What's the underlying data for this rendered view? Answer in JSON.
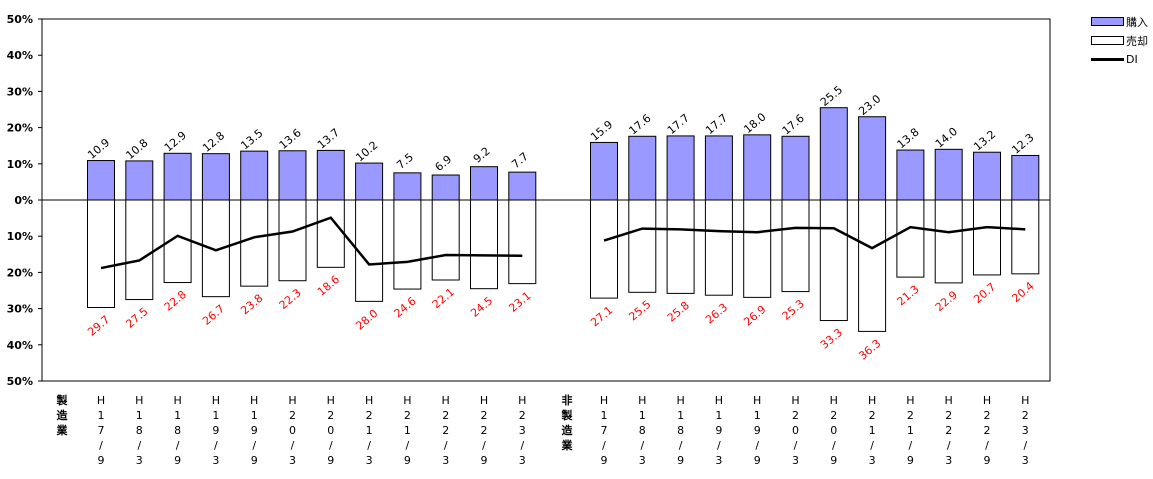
{
  "chart_data": {
    "type": "bar",
    "groups": [
      {
        "label": "製造業",
        "categories": [
          "H17/9",
          "H18/3",
          "H18/9",
          "H19/3",
          "H19/9",
          "H20/3",
          "H20/9",
          "H21/3",
          "H21/9",
          "H22/3",
          "H22/9",
          "H23/3"
        ],
        "purchase": [
          10.9,
          10.8,
          12.9,
          12.8,
          13.5,
          13.6,
          13.7,
          10.2,
          7.5,
          6.9,
          9.2,
          7.7
        ],
        "sale": [
          29.7,
          27.5,
          22.8,
          26.7,
          23.8,
          22.3,
          18.6,
          28.0,
          24.6,
          22.1,
          24.5,
          23.1
        ],
        "di": [
          -18.8,
          -16.7,
          -9.9,
          -13.9,
          -10.3,
          -8.7,
          -4.9,
          -17.8,
          -17.1,
          -15.2,
          -15.3,
          -15.4
        ],
        "purchase_labels": [
          "10.9",
          "10.8",
          "12.9",
          "12.8",
          "13.5",
          "13.6",
          "13.7",
          "10.2",
          "7.5",
          "6.9",
          "9.2",
          "7.7"
        ],
        "sale_labels": [
          "29.7",
          "27.5",
          "22.8",
          "26.7",
          "23.8",
          "22.3",
          "18.6",
          "28.0",
          "24.6",
          "22.1",
          "24.5",
          "23.1"
        ]
      },
      {
        "label": "非製造業",
        "categories": [
          "H17/9",
          "H18/3",
          "H18/9",
          "H19/3",
          "H19/9",
          "H20/3",
          "H20/9",
          "H21/3",
          "H21/9",
          "H22/3",
          "H22/9",
          "H23/3"
        ],
        "purchase": [
          15.9,
          17.6,
          17.7,
          17.7,
          18.0,
          17.6,
          25.5,
          23.0,
          13.8,
          14.0,
          13.2,
          12.3
        ],
        "sale": [
          27.1,
          25.5,
          25.8,
          26.3,
          26.9,
          25.3,
          33.3,
          36.3,
          21.3,
          22.9,
          20.7,
          20.4
        ],
        "di": [
          -11.2,
          -7.9,
          -8.1,
          -8.6,
          -8.9,
          -7.7,
          -7.8,
          -13.3,
          -7.5,
          -8.9,
          -7.5,
          -8.1
        ],
        "purchase_labels": [
          "15.9",
          "17.6",
          "17.7",
          "17.7",
          "18.0",
          "17.6",
          "25.5",
          "23.0",
          "13.8",
          "14.0",
          "13.2",
          "12.3"
        ],
        "sale_labels": [
          "27.1",
          "25.5",
          "25.8",
          "26.3",
          "26.9",
          "25.3",
          "33.3",
          "36.3",
          "21.3",
          "22.9",
          "20.7",
          "20.4"
        ]
      }
    ],
    "y_ticks": [
      "50%",
      "40%",
      "30%",
      "20%",
      "10%",
      "0%",
      "10%",
      "20%",
      "30%",
      "40%",
      "50%"
    ],
    "ylim": [
      -50,
      50
    ],
    "legend": {
      "purchase": "購入",
      "sale": "売却",
      "di": "DI"
    },
    "legend_position": "top-right",
    "colors": {
      "purchase": "#9999ff",
      "sale": "#ffffff",
      "di": "#000000",
      "sale_label": "#ff0000"
    },
    "grid": false
  }
}
